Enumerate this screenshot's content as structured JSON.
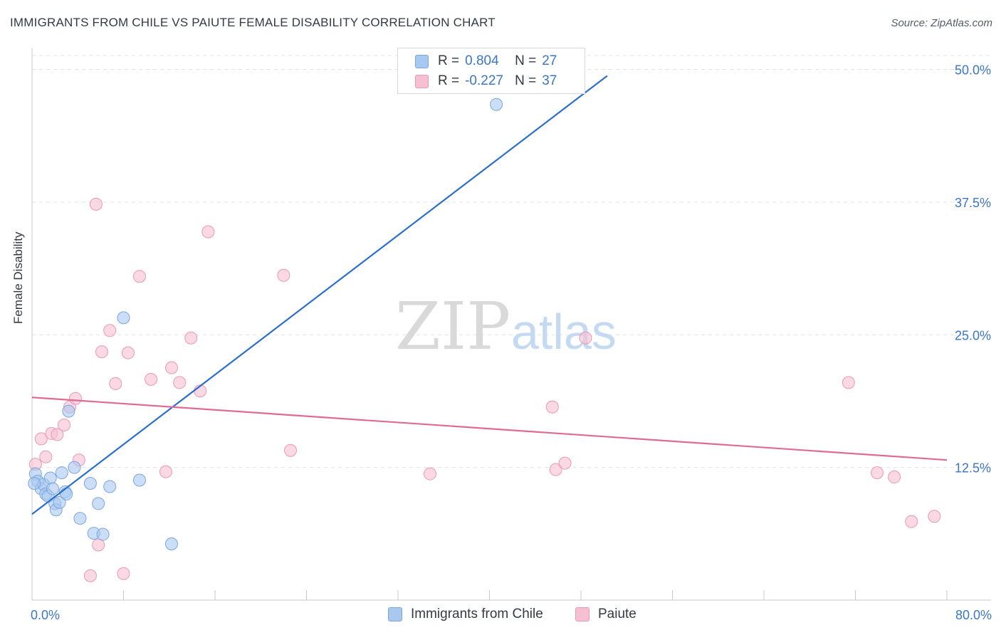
{
  "header": {
    "title": "IMMIGRANTS FROM CHILE VS PAIUTE FEMALE DISABILITY CORRELATION CHART",
    "source": "Source: ZipAtlas.com"
  },
  "watermark": {
    "zip": "ZIP",
    "atlas": "atlas"
  },
  "legend": {
    "rows": [
      {
        "r_label": "R =",
        "r_value": "0.804",
        "n_label": "N =",
        "n_value": "27"
      },
      {
        "r_label": "R =",
        "r_value": "-0.227",
        "n_label": "N =",
        "n_value": "37"
      }
    ]
  },
  "bottom_legend": [
    "Immigrants from Chile",
    "Paiute"
  ],
  "colors": {
    "chile_fill": "#a9c8f0",
    "chile_stroke": "#7aa6df",
    "chile_line": "#2a6fcc",
    "paiute_fill": "#f6bfd2",
    "paiute_stroke": "#ea98b5",
    "paiute_line": "#e06a94",
    "tick_label": "#3b77c6",
    "grid": "#e3e3e3"
  },
  "chart_data": {
    "type": "scatter",
    "title": "IMMIGRANTS FROM CHILE VS PAIUTE FEMALE DISABILITY CORRELATION CHART",
    "xlabel": "",
    "ylabel": "Female Disability",
    "xlim": [
      0,
      80
    ],
    "ylim": [
      0,
      50
    ],
    "x_tick_labels": [
      {
        "value": 0,
        "label": "0.0%"
      },
      {
        "value": 80,
        "label": "80.0%"
      }
    ],
    "y_ticks": [
      {
        "value": 12.5,
        "label": "12.5%"
      },
      {
        "value": 25,
        "label": "25.0%"
      },
      {
        "value": 37.5,
        "label": "37.5%"
      },
      {
        "value": 50,
        "label": "50.0%"
      }
    ],
    "series": [
      {
        "name": "Immigrants from Chile",
        "r": 0.804,
        "n": 27,
        "points": [
          [
            0.3,
            11.9
          ],
          [
            0.5,
            11.2
          ],
          [
            0.8,
            10.5
          ],
          [
            1.0,
            10.9
          ],
          [
            1.2,
            10.0
          ],
          [
            1.4,
            9.8
          ],
          [
            1.6,
            11.5
          ],
          [
            1.8,
            10.5
          ],
          [
            2.0,
            9.1
          ],
          [
            2.1,
            8.5
          ],
          [
            2.4,
            9.2
          ],
          [
            2.6,
            12.0
          ],
          [
            2.9,
            10.2
          ],
          [
            3.0,
            10.0
          ],
          [
            3.2,
            17.8
          ],
          [
            3.7,
            12.5
          ],
          [
            4.2,
            7.7
          ],
          [
            5.1,
            11.0
          ],
          [
            5.4,
            6.3
          ],
          [
            5.8,
            9.1
          ],
          [
            6.2,
            6.2
          ],
          [
            6.8,
            10.7
          ],
          [
            8.0,
            26.6
          ],
          [
            9.4,
            11.3
          ],
          [
            12.2,
            5.3
          ],
          [
            40.6,
            46.7
          ],
          [
            0.2,
            11.0
          ]
        ],
        "trend": {
          "x": [
            0,
            50.3
          ],
          "y": [
            8.1,
            49.4
          ]
        }
      },
      {
        "name": "Paiute",
        "r": -0.227,
        "n": 37,
        "points": [
          [
            0.3,
            12.8
          ],
          [
            0.8,
            15.2
          ],
          [
            1.2,
            13.5
          ],
          [
            1.7,
            15.7
          ],
          [
            2.2,
            15.6
          ],
          [
            2.8,
            16.5
          ],
          [
            3.3,
            18.2
          ],
          [
            3.8,
            19.0
          ],
          [
            4.1,
            13.2
          ],
          [
            5.1,
            2.3
          ],
          [
            5.6,
            37.3
          ],
          [
            5.8,
            5.2
          ],
          [
            6.1,
            23.4
          ],
          [
            6.8,
            25.4
          ],
          [
            7.3,
            20.4
          ],
          [
            8.0,
            2.5
          ],
          [
            8.4,
            23.3
          ],
          [
            9.4,
            30.5
          ],
          [
            10.4,
            20.8
          ],
          [
            11.7,
            12.1
          ],
          [
            12.2,
            21.9
          ],
          [
            12.9,
            20.5
          ],
          [
            13.9,
            24.7
          ],
          [
            14.7,
            19.7
          ],
          [
            15.4,
            34.7
          ],
          [
            22.0,
            30.6
          ],
          [
            22.6,
            14.1
          ],
          [
            34.8,
            11.9
          ],
          [
            45.5,
            18.2
          ],
          [
            45.8,
            12.3
          ],
          [
            46.6,
            12.9
          ],
          [
            48.4,
            24.7
          ],
          [
            71.4,
            20.5
          ],
          [
            73.9,
            12.0
          ],
          [
            75.4,
            11.6
          ],
          [
            76.9,
            7.4
          ],
          [
            78.9,
            7.9
          ]
        ],
        "trend": {
          "x": [
            0,
            80
          ],
          "y": [
            19.1,
            13.2
          ]
        }
      }
    ]
  }
}
